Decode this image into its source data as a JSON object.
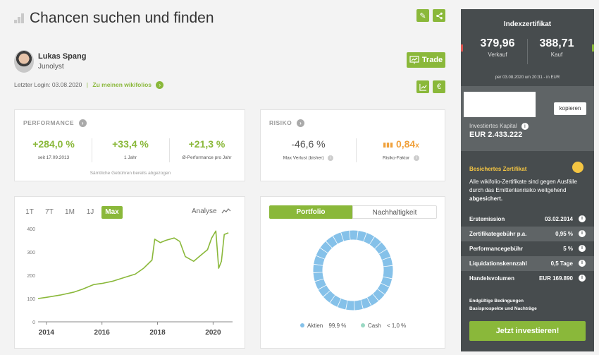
{
  "header": {
    "title": "Chancen suchen und finden",
    "edit_icon": "pencil-icon",
    "share_icon": "share-icon"
  },
  "author": {
    "name": "Lukas Spang",
    "company": "Junolyst",
    "last_login_label": "Letzter Login: 03.08.2020",
    "separator": "|",
    "wikifolios_link": "Zu meinen wikifolios",
    "trade_label": "Trade"
  },
  "performance": {
    "label": "PERFORMANCE",
    "items": [
      {
        "value": "+284,0 %",
        "sub": "seit 17.09.2013"
      },
      {
        "value": "+33,4 %",
        "sub": "1 Jahr"
      },
      {
        "value": "+21,3 %",
        "sub": "Ø-Performance pro Jahr"
      }
    ],
    "note": "Sämtliche Gebühren bereits abgezogen"
  },
  "risk": {
    "label": "RISIKO",
    "max_loss_value": "-46,6 %",
    "max_loss_label": "Max Verlust (bisher)",
    "risk_factor_value": "0,84",
    "risk_factor_suffix": "x",
    "risk_factor_label": "Risiko-Faktor"
  },
  "chart": {
    "ranges": [
      "1T",
      "7T",
      "1M",
      "1J",
      "Max"
    ],
    "active_range": "Max",
    "analyse_label": "Analyse",
    "accent": "#8ab83a"
  },
  "chart_data": {
    "type": "line",
    "title": "",
    "xlabel": "",
    "ylabel": "",
    "x_ticks": [
      "2014",
      "2016",
      "2018",
      "2020"
    ],
    "y_ticks": [
      "0",
      "100",
      "200",
      "300",
      "400"
    ],
    "ylim": [
      0,
      400
    ],
    "xlim": [
      2013.7,
      2020.7
    ],
    "grid": false,
    "x": [
      2013.7,
      2014.0,
      2014.5,
      2015.0,
      2015.3,
      2015.7,
      2016.0,
      2016.4,
      2016.8,
      2017.2,
      2017.5,
      2017.8,
      2017.9,
      2018.1,
      2018.3,
      2018.6,
      2018.8,
      2019.0,
      2019.3,
      2019.6,
      2019.8,
      2019.95,
      2020.1,
      2020.2,
      2020.3,
      2020.4,
      2020.55
    ],
    "values": [
      100,
      105,
      115,
      128,
      140,
      160,
      165,
      175,
      190,
      205,
      230,
      265,
      355,
      340,
      350,
      360,
      345,
      280,
      260,
      290,
      310,
      360,
      390,
      230,
      260,
      375,
      382
    ]
  },
  "portfolio": {
    "tabs": [
      "Portfolio",
      "Nachhaltigkeit"
    ],
    "active_tab": "Portfolio",
    "legend": [
      {
        "label": "Aktien",
        "value": "99,9 %",
        "color": "#85c1e9"
      },
      {
        "label": "Cash",
        "value": "< 1,0 %",
        "color": "#9ad8c3"
      }
    ]
  },
  "sidebar": {
    "title": "Indexzertifikat",
    "sell_value": "379,96",
    "sell_label": "Verkauf",
    "buy_value": "388,71",
    "buy_label": "Kauf",
    "price_note": "per 03.08.2020 um 20:31 - in EUR",
    "copy_label": "kopieren",
    "capital_label": "Investiertes Kapital",
    "capital_value": "EUR 2.433.222",
    "secured_title": "Besichertes Zertifikat",
    "secured_text": "Alle wikifolio-Zertifikate sind gegen Ausfälle durch das Emittentenrisiko weitgehend",
    "secured_bold": "abgesichert.",
    "rows": [
      {
        "label": "Erstemission",
        "value": "03.02.2014"
      },
      {
        "label": "Zertifikategebühr p.a.",
        "value": "0,95 %"
      },
      {
        "label": "Performancegebühr",
        "value": "5 %"
      },
      {
        "label": "Liquidationskennzahl",
        "value": "0,5 Tage"
      },
      {
        "label": "Handelsvolumen",
        "value": "EUR 169.890"
      }
    ],
    "links": [
      "Endgültige Bedingungen",
      "Basisprospekte und Nachträge"
    ],
    "invest_label": "Jetzt investieren!"
  }
}
